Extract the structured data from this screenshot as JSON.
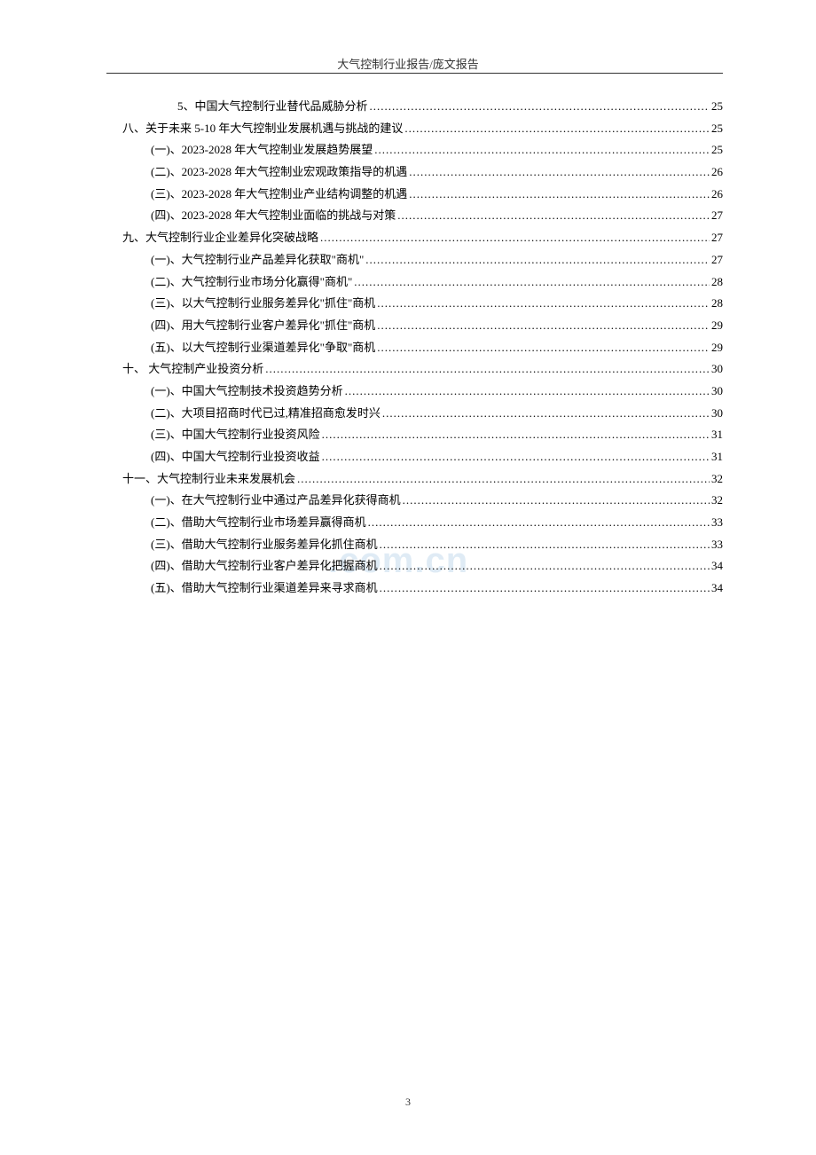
{
  "header": "大气控制行业报告/庞文报告",
  "watermark": ".com.cn",
  "pageNumber": "3",
  "toc": [
    {
      "text": "5、中国大气控制行业替代品威胁分析",
      "page": "25",
      "indent": "indent-1"
    },
    {
      "text": "八、关于未来 5-10 年大气控制业发展机遇与挑战的建议",
      "page": "25",
      "indent": "indent-2"
    },
    {
      "text": "(一)、2023-2028 年大气控制业发展趋势展望",
      "page": "25",
      "indent": "indent-3"
    },
    {
      "text": "(二)、2023-2028 年大气控制业宏观政策指导的机遇",
      "page": "26",
      "indent": "indent-3"
    },
    {
      "text": "(三)、2023-2028 年大气控制业产业结构调整的机遇",
      "page": "26",
      "indent": "indent-3"
    },
    {
      "text": "(四)、2023-2028 年大气控制业面临的挑战与对策",
      "page": "27",
      "indent": "indent-3"
    },
    {
      "text": "九、大气控制行业企业差异化突破战略",
      "page": "27",
      "indent": "indent-2"
    },
    {
      "text": "(一)、大气控制行业产品差异化获取\"商机\"",
      "page": "27",
      "indent": "indent-3"
    },
    {
      "text": "(二)、大气控制行业市场分化赢得\"商机\"",
      "page": "28",
      "indent": "indent-3"
    },
    {
      "text": "(三)、以大气控制行业服务差异化\"抓住\"商机",
      "page": "28",
      "indent": "indent-3"
    },
    {
      "text": "(四)、用大气控制行业客户差异化\"抓住\"商机",
      "page": "29",
      "indent": "indent-3"
    },
    {
      "text": "(五)、以大气控制行业渠道差异化\"争取\"商机",
      "page": "29",
      "indent": "indent-3"
    },
    {
      "text": "十、 大气控制产业投资分析",
      "page": "30",
      "indent": "indent-2"
    },
    {
      "text": "(一)、中国大气控制技术投资趋势分析",
      "page": "30",
      "indent": "indent-3"
    },
    {
      "text": "(二)、大项目招商时代已过,精准招商愈发时兴",
      "page": "30",
      "indent": "indent-3"
    },
    {
      "text": "(三)、中国大气控制行业投资风险",
      "page": "31",
      "indent": "indent-3"
    },
    {
      "text": "(四)、中国大气控制行业投资收益",
      "page": "31",
      "indent": "indent-3"
    },
    {
      "text": "十一、大气控制行业未来发展机会",
      "page": "32",
      "indent": "indent-2"
    },
    {
      "text": "(一)、在大气控制行业中通过产品差异化获得商机",
      "page": "32",
      "indent": "indent-3"
    },
    {
      "text": "(二)、借助大气控制行业市场差异赢得商机",
      "page": "33",
      "indent": "indent-3"
    },
    {
      "text": "(三)、借助大气控制行业服务差异化抓住商机",
      "page": "33",
      "indent": "indent-3"
    },
    {
      "text": "(四)、借助大气控制行业客户差异化把握商机",
      "page": "34",
      "indent": "indent-3"
    },
    {
      "text": "(五)、借助大气控制行业渠道差异来寻求商机",
      "page": "34",
      "indent": "indent-3"
    }
  ]
}
